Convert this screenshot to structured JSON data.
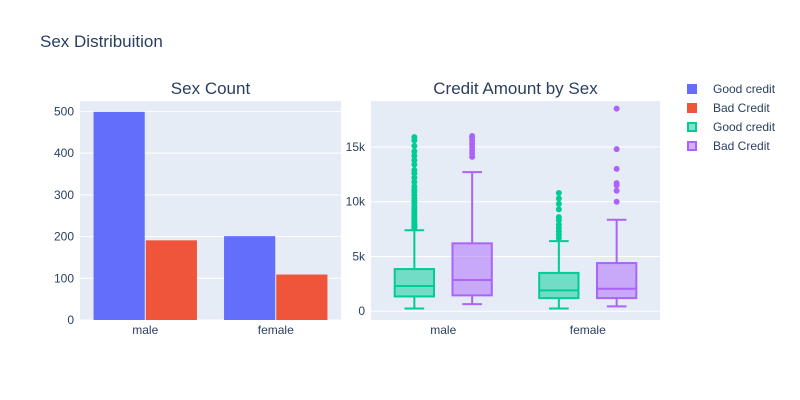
{
  "title": "Sex Distribuition",
  "colors": {
    "good_bar": "#636efa",
    "bad_bar": "#ef553b",
    "good_box": "#00cc96",
    "bad_box": "#ab63fa",
    "plot_bg": "#e5ecf6",
    "text": "#2a3f5f",
    "grid": "#ffffff"
  },
  "legend": {
    "position": "right",
    "items": [
      {
        "label": "Good credit",
        "color": "#636efa",
        "kind": "bar"
      },
      {
        "label": "Bad Credit",
        "color": "#ef553b",
        "kind": "bar"
      },
      {
        "label": "Good credit",
        "color": "#00cc96",
        "kind": "box"
      },
      {
        "label": "Bad Credit",
        "color": "#ab63fa",
        "kind": "box"
      }
    ]
  },
  "chart_data": [
    {
      "type": "bar",
      "title": "Sex Count",
      "categories": [
        "male",
        "female"
      ],
      "series": [
        {
          "name": "Good credit",
          "values": [
            499,
            201
          ]
        },
        {
          "name": "Bad Credit",
          "values": [
            191,
            109
          ]
        }
      ],
      "ylim": [
        0,
        525
      ],
      "yticks": [
        0,
        100,
        200,
        300,
        400,
        500
      ],
      "ytick_labels": [
        "0",
        "100",
        "200",
        "300",
        "400",
        "500"
      ],
      "grid": true
    },
    {
      "type": "box",
      "title": "Credit Amount by Sex",
      "categories": [
        "male",
        "female"
      ],
      "series": [
        {
          "name": "Good credit",
          "boxes": [
            {
              "min": 250,
              "q1": 1350,
              "median": 2300,
              "q3": 3850,
              "whisker_high": 7400,
              "outliers": [
                7600,
                7700,
                7800,
                7900,
                8000,
                8100,
                8300,
                8400,
                8600,
                8800,
                9000,
                9200,
                9400,
                9600,
                9900,
                10100,
                10300,
                10600,
                10900,
                11100,
                11400,
                11800,
                12200,
                12600,
                12900,
                13400,
                13800,
                14200,
                14600,
                15100,
                15600,
                15900
              ]
            },
            {
              "min": 250,
              "q1": 1200,
              "median": 1900,
              "q3": 3500,
              "whisker_high": 6400,
              "outliers": [
                6700,
                7000,
                7300,
                7600,
                7900,
                8300,
                8600,
                9300,
                9800,
                10300,
                10800
              ]
            }
          ]
        },
        {
          "name": "Bad Credit",
          "boxes": [
            {
              "min": 650,
              "q1": 1450,
              "median": 2850,
              "q3": 6200,
              "whisker_high": 12700,
              "outliers": [
                14100,
                14400,
                14700,
                15000,
                15300,
                15600,
                15900,
                16000
              ]
            },
            {
              "min": 450,
              "q1": 1200,
              "median": 2050,
              "q3": 4400,
              "whisker_high": 8350,
              "outliers": [
                10000,
                11000,
                11500,
                11700,
                13000,
                14800,
                18500
              ]
            }
          ]
        }
      ],
      "ylim": [
        -800,
        19200
      ],
      "yticks": [
        0,
        5000,
        10000,
        15000
      ],
      "ytick_labels": [
        "0",
        "5k",
        "10k",
        "15k"
      ],
      "grid": true
    }
  ]
}
